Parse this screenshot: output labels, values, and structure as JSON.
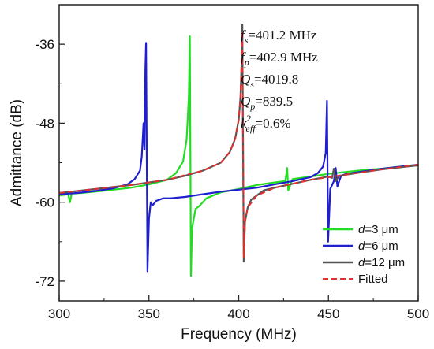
{
  "chart_data": {
    "type": "line",
    "xlabel": "Frequency (MHz)",
    "ylabel": "Admittance (dB)",
    "xlim": [
      300,
      500
    ],
    "ylim": [
      -75,
      -30
    ],
    "xticks": [
      300,
      350,
      400,
      450,
      500
    ],
    "yticks": [
      -36,
      -48,
      -60,
      -72
    ],
    "grid": false,
    "legend": {
      "placement": "bottom-right"
    },
    "annotations": [
      {
        "base": "f",
        "sub": "s",
        "sup": "",
        "value": "=401.2 MHz"
      },
      {
        "base": "f",
        "sub": "p",
        "sup": "",
        "value": "=402.9 MHz"
      },
      {
        "base": "Q",
        "sub": "s",
        "sup": "",
        "value": "=4019.8"
      },
      {
        "base": "Q",
        "sub": "p",
        "sup": "",
        "value": "=839.5"
      },
      {
        "base": "k",
        "sub": "eff",
        "sup": "2",
        "value": "=0.6%"
      }
    ],
    "series": [
      {
        "name": "d=3 μm",
        "label_italic": "d",
        "label_rest": "=3 μm",
        "color": "#22dd22",
        "dash": false,
        "points": [
          [
            300,
            -59.0
          ],
          [
            305,
            -58.8
          ],
          [
            306,
            -60.0
          ],
          [
            307,
            -58.7
          ],
          [
            312,
            -58.6
          ],
          [
            320,
            -58.4
          ],
          [
            330,
            -58.1
          ],
          [
            340,
            -57.8
          ],
          [
            350,
            -57.3
          ],
          [
            360,
            -56.6
          ],
          [
            365,
            -55.6
          ],
          [
            369,
            -53.8
          ],
          [
            371,
            -50.5
          ],
          [
            372.2,
            -44.0
          ],
          [
            372.8,
            -34.8
          ],
          [
            373.4,
            -71.2
          ],
          [
            374,
            -64.0
          ],
          [
            376,
            -61.0
          ],
          [
            378,
            -60.6
          ],
          [
            380,
            -60.0
          ],
          [
            382,
            -59.4
          ],
          [
            390,
            -58.5
          ],
          [
            400,
            -58.0
          ],
          [
            410,
            -57.4
          ],
          [
            420,
            -57.0
          ],
          [
            426,
            -56.8
          ],
          [
            427,
            -54.8
          ],
          [
            427.6,
            -58.2
          ],
          [
            430,
            -56.5
          ],
          [
            440,
            -56.1
          ],
          [
            450,
            -55.7
          ],
          [
            460,
            -55.4
          ],
          [
            470,
            -55.1
          ],
          [
            480,
            -54.9
          ],
          [
            490,
            -54.6
          ],
          [
            500,
            -54.4
          ]
        ]
      },
      {
        "name": "d=6 μm",
        "label_italic": "d",
        "label_rest": "=6 μm",
        "color": "#1f1fcf",
        "dash": false,
        "points": [
          [
            300,
            -58.8
          ],
          [
            310,
            -58.6
          ],
          [
            320,
            -58.3
          ],
          [
            330,
            -57.9
          ],
          [
            338,
            -57.3
          ],
          [
            342,
            -56.5
          ],
          [
            345,
            -55.2
          ],
          [
            346,
            -53.0
          ],
          [
            347,
            -48.0
          ],
          [
            347.5,
            -52.0
          ],
          [
            348,
            -40.0
          ],
          [
            348.4,
            -35.8
          ],
          [
            349.2,
            -70.5
          ],
          [
            350,
            -62.5
          ],
          [
            351,
            -60.0
          ],
          [
            352,
            -60.5
          ],
          [
            354,
            -59.8
          ],
          [
            358,
            -59.4
          ],
          [
            362,
            -59.4
          ],
          [
            370,
            -59.2
          ],
          [
            380,
            -58.8
          ],
          [
            390,
            -58.4
          ],
          [
            400,
            -58.1
          ],
          [
            410,
            -57.8
          ],
          [
            420,
            -57.3
          ],
          [
            430,
            -56.8
          ],
          [
            440,
            -56.2
          ],
          [
            444,
            -55.6
          ],
          [
            447,
            -54.6
          ],
          [
            448.5,
            -52.5
          ],
          [
            449.2,
            -44.6
          ],
          [
            449.8,
            -66.0
          ],
          [
            451,
            -58.0
          ],
          [
            453,
            -56.8
          ],
          [
            454,
            -54.8
          ],
          [
            455,
            -57.6
          ],
          [
            457,
            -56.0
          ],
          [
            460,
            -55.7
          ],
          [
            470,
            -55.3
          ],
          [
            480,
            -54.9
          ],
          [
            490,
            -54.6
          ],
          [
            500,
            -54.3
          ]
        ]
      },
      {
        "name": "d=12 μm",
        "label_italic": "d",
        "label_rest": "=12 μm",
        "color": "#555555",
        "dash": false,
        "points": [
          [
            300,
            -58.6
          ],
          [
            310,
            -58.3
          ],
          [
            320,
            -58.0
          ],
          [
            330,
            -57.7
          ],
          [
            340,
            -57.4
          ],
          [
            350,
            -57.0
          ],
          [
            360,
            -56.6
          ],
          [
            370,
            -56.0
          ],
          [
            380,
            -55.2
          ],
          [
            390,
            -54.0
          ],
          [
            395,
            -52.4
          ],
          [
            398,
            -50.4
          ],
          [
            400,
            -47.5
          ],
          [
            401,
            -44.0
          ],
          [
            401.6,
            -39.0
          ],
          [
            402,
            -33.0
          ],
          [
            402.8,
            -69.0
          ],
          [
            403.5,
            -63.0
          ],
          [
            405,
            -60.8
          ],
          [
            407,
            -59.6
          ],
          [
            410,
            -59.0
          ],
          [
            414,
            -58.2
          ],
          [
            420,
            -57.8
          ],
          [
            430,
            -57.2
          ],
          [
            440,
            -56.6
          ],
          [
            450,
            -56.1
          ],
          [
            452,
            -56.3
          ],
          [
            453,
            -54.9
          ],
          [
            454,
            -56.8
          ],
          [
            456,
            -56.0
          ],
          [
            460,
            -55.8
          ],
          [
            470,
            -55.4
          ],
          [
            480,
            -55.0
          ],
          [
            490,
            -54.7
          ],
          [
            500,
            -54.4
          ]
        ]
      },
      {
        "name": "Fitted",
        "label_italic": "",
        "label_rest": "Fitted",
        "color": "#e03030",
        "dash": true,
        "points": [
          [
            300,
            -58.6
          ],
          [
            320,
            -58.0
          ],
          [
            340,
            -57.4
          ],
          [
            360,
            -56.6
          ],
          [
            380,
            -55.2
          ],
          [
            390,
            -54.0
          ],
          [
            395,
            -52.4
          ],
          [
            398,
            -50.4
          ],
          [
            400,
            -47.5
          ],
          [
            401,
            -44.0
          ],
          [
            401.6,
            -39.0
          ],
          [
            402,
            -34.0
          ],
          [
            402.8,
            -68.5
          ],
          [
            403.5,
            -63.0
          ],
          [
            405,
            -60.8
          ],
          [
            410,
            -59.0
          ],
          [
            420,
            -57.8
          ],
          [
            440,
            -56.6
          ],
          [
            460,
            -55.8
          ],
          [
            480,
            -55.0
          ],
          [
            500,
            -54.3
          ]
        ]
      }
    ]
  }
}
